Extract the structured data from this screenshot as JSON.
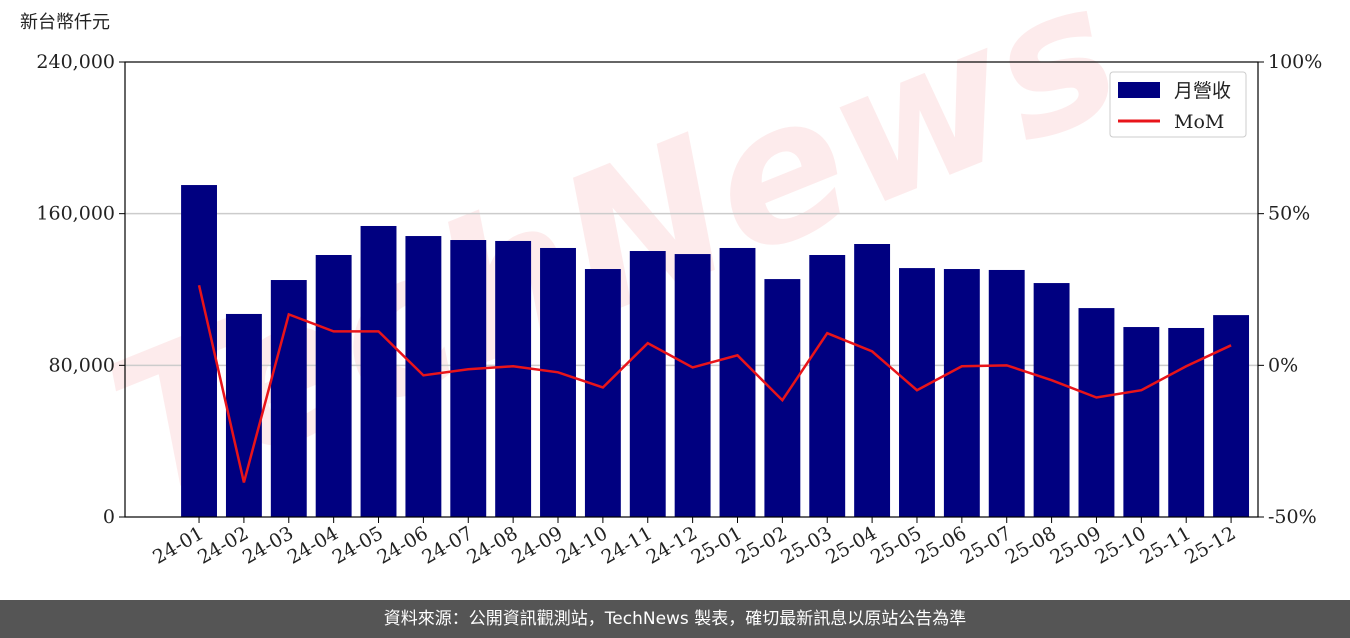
{
  "chart_data": {
    "type": "bar-line",
    "y_label": "新台幣仟元",
    "watermark": "TechNews",
    "categories": [
      "24-01",
      "24-02",
      "24-03",
      "24-04",
      "24-05",
      "24-06",
      "24-07",
      "24-08",
      "24-09",
      "24-10",
      "24-11",
      "24-12",
      "25-01",
      "25-02",
      "25-03",
      "25-04",
      "25-05",
      "25-06",
      "25-07",
      "25-08",
      "25-09",
      "25-10",
      "25-11",
      "25-12"
    ],
    "series": [
      {
        "name": "月營收",
        "type": "bar",
        "color": "#000080",
        "values": [
          175100,
          107100,
          125000,
          138200,
          153500,
          148200,
          146100,
          145600,
          141900,
          130800,
          140300,
          138700,
          141900,
          125500,
          138200,
          144000,
          131300,
          130800,
          130300,
          123400,
          110200,
          100200,
          99700,
          106500
        ]
      },
      {
        "name": "MoM",
        "type": "line",
        "axis": "y2",
        "color": "#e8141a",
        "values": [
          26.4,
          -38.6,
          16.8,
          11.2,
          11.2,
          -3.3,
          -1.3,
          -0.3,
          -2.3,
          -7.3,
          7.3,
          -0.7,
          3.3,
          -11.5,
          10.6,
          4.6,
          -8.2,
          -0.3,
          0,
          -4.9,
          -10.6,
          -8.2,
          -0.3,
          6.6
        ]
      }
    ],
    "ylim": [
      0,
      240000
    ],
    "yticks": [
      0,
      {
        "value": 80000,
        "label": "80,000"
      },
      {
        "value": 160000,
        "label": "160,000"
      },
      {
        "value": 240000,
        "label": "240,000"
      }
    ],
    "y2lim": [
      -50,
      100
    ],
    "y2ticks": [
      {
        "value": -50,
        "label": "-50%"
      },
      {
        "value": 0,
        "label": "0%"
      },
      {
        "value": 50,
        "label": "50%"
      },
      {
        "value": 100,
        "label": "100%"
      }
    ],
    "grid": true,
    "legend": "upper right",
    "source": "資料來源：公開資訊觀測站，TechNews 製表，確切最新訊息以原站公告為準"
  }
}
